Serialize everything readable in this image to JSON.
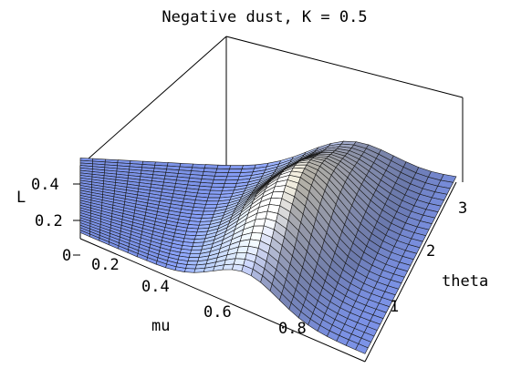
{
  "chart_data": {
    "type": "surface3d",
    "title": "Negative dust, K = 0.5",
    "xlabel": "mu",
    "ylabel": "theta",
    "zlabel": "L",
    "x_ticks": [
      "0.2",
      "0.4",
      "0.6",
      "0.8"
    ],
    "y_ticks": [
      "1",
      "2",
      "3"
    ],
    "z_ticks": [
      "0",
      "0.2",
      "0.4"
    ],
    "xlim": [
      0,
      1
    ],
    "ylim": [
      0,
      3.14159
    ],
    "zlim": [
      0,
      0.5
    ],
    "grid_lines": 30,
    "surface": {
      "baseline": 0.06,
      "peak_height": 0.45,
      "peak_mu_low": 0.58,
      "peak_mu_high": 0.72,
      "peak_width_mu": 0.16,
      "ridge_theta_center": 1.6,
      "ridge_theta_width": 1.2
    },
    "colors": {
      "surface_low": "#7c93e8",
      "surface_high": "#f2eddc",
      "mesh": "#1a1a1a"
    }
  }
}
